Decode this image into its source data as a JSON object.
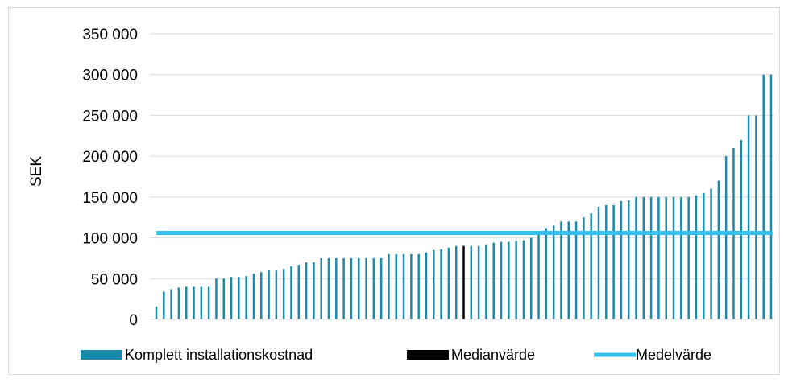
{
  "chart_data": {
    "type": "bar",
    "ylabel": "SEK",
    "ylim": [
      0,
      350000
    ],
    "yticks": [
      0,
      50000,
      100000,
      150000,
      200000,
      250000,
      300000,
      350000
    ],
    "ytick_labels": [
      "0",
      "50 000",
      "100 000",
      "150 000",
      "200 000",
      "250 000",
      "300 000",
      "350 000"
    ],
    "grid": true,
    "legend_position": "bottom",
    "series": [
      {
        "name": "Komplett installationskostnad",
        "color": "#1a8aaa",
        "values": [
          16000,
          34000,
          37000,
          39000,
          40000,
          40000,
          40000,
          40000,
          50000,
          50000,
          52000,
          52000,
          53000,
          56000,
          58000,
          60000,
          60000,
          62000,
          65000,
          67000,
          70000,
          70000,
          75000,
          75000,
          75000,
          75000,
          75000,
          75000,
          75000,
          75000,
          75000,
          80000,
          80000,
          80000,
          80000,
          80000,
          82000,
          85000,
          86000,
          88000,
          90000,
          90000,
          90000,
          90000,
          92000,
          94000,
          95000,
          95000,
          96000,
          97000,
          100000,
          105000,
          112000,
          115000,
          120000,
          120000,
          120000,
          125000,
          130000,
          138000,
          140000,
          140000,
          145000,
          146000,
          150000,
          150000,
          150000,
          150000,
          150000,
          150000,
          150000,
          150000,
          152000,
          155000,
          160000,
          170000,
          200000,
          210000,
          220000,
          250000,
          250000,
          300000,
          300000
        ]
      },
      {
        "name": "Medianvärde",
        "color": "#000000",
        "index": 41,
        "value": 90000
      },
      {
        "name": "Medelvärde",
        "color": "#33c2f0",
        "value": 106000
      }
    ]
  }
}
